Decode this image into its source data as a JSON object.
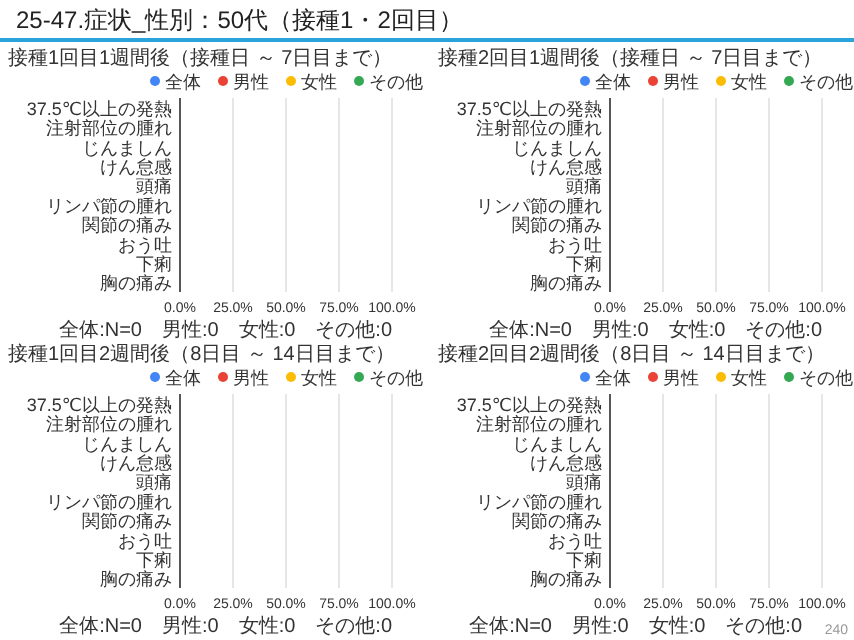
{
  "chart_data": [
    {
      "type": "bar",
      "orientation": "horizontal",
      "title": "接種1回目1週間後（接種日 ～ 7日目まで）",
      "categories": [
        "37.5℃以上の発熱",
        "注射部位の腫れ",
        "じんましん",
        "けん怠感",
        "頭痛",
        "リンパ節の腫れ",
        "関節の痛み",
        "おう吐",
        "下痢",
        "胸の痛み"
      ],
      "series": [
        {
          "name": "全体",
          "color": "#4285f4",
          "values": [
            0,
            0,
            0,
            0,
            0,
            0,
            0,
            0,
            0,
            0
          ]
        },
        {
          "name": "男性",
          "color": "#ea4335",
          "values": [
            0,
            0,
            0,
            0,
            0,
            0,
            0,
            0,
            0,
            0
          ]
        },
        {
          "name": "女性",
          "color": "#fbbc04",
          "values": [
            0,
            0,
            0,
            0,
            0,
            0,
            0,
            0,
            0,
            0
          ]
        },
        {
          "name": "その他",
          "color": "#34a853",
          "values": [
            0,
            0,
            0,
            0,
            0,
            0,
            0,
            0,
            0,
            0
          ]
        }
      ],
      "xlim": [
        0,
        100
      ],
      "xticks": [
        {
          "value": 0,
          "label": "0.0%"
        },
        {
          "value": 25,
          "label": "25.0%"
        },
        {
          "value": 50,
          "label": "50.0%"
        },
        {
          "value": 75,
          "label": "75.0%"
        },
        {
          "value": 100,
          "label": "100.0%"
        }
      ],
      "grid": "x",
      "legend": "top",
      "annotations": [
        "25-47.症状_性別：50代（接種1・2回目）",
        "全体:N=0　男性:0　女性:0　その他:0"
      ]
    },
    {
      "type": "bar",
      "orientation": "horizontal",
      "title": "接種2回目1週間後（接種日 ～ 7日目まで）",
      "categories": [
        "37.5℃以上の発熱",
        "注射部位の腫れ",
        "じんましん",
        "けん怠感",
        "頭痛",
        "リンパ節の腫れ",
        "関節の痛み",
        "おう吐",
        "下痢",
        "胸の痛み"
      ],
      "series": [
        {
          "name": "全体",
          "color": "#4285f4",
          "values": [
            0,
            0,
            0,
            0,
            0,
            0,
            0,
            0,
            0,
            0
          ]
        },
        {
          "name": "男性",
          "color": "#ea4335",
          "values": [
            0,
            0,
            0,
            0,
            0,
            0,
            0,
            0,
            0,
            0
          ]
        },
        {
          "name": "女性",
          "color": "#fbbc04",
          "values": [
            0,
            0,
            0,
            0,
            0,
            0,
            0,
            0,
            0,
            0
          ]
        },
        {
          "name": "その他",
          "color": "#34a853",
          "values": [
            0,
            0,
            0,
            0,
            0,
            0,
            0,
            0,
            0,
            0
          ]
        }
      ],
      "xlim": [
        0,
        100
      ],
      "xticks": [
        {
          "value": 0,
          "label": "0.0%"
        },
        {
          "value": 25,
          "label": "25.0%"
        },
        {
          "value": 50,
          "label": "50.0%"
        },
        {
          "value": 75,
          "label": "75.0%"
        },
        {
          "value": 100,
          "label": "100.0%"
        }
      ],
      "grid": "x",
      "legend": "top",
      "annotations": [
        "全体:N=0　男性:0　女性:0　その他:0"
      ]
    },
    {
      "type": "bar",
      "orientation": "horizontal",
      "title": "接種1回目2週間後（8日目 ～ 14日目まで）",
      "categories": [
        "37.5℃以上の発熱",
        "注射部位の腫れ",
        "じんましん",
        "けん怠感",
        "頭痛",
        "リンパ節の腫れ",
        "関節の痛み",
        "おう吐",
        "下痢",
        "胸の痛み"
      ],
      "series": [
        {
          "name": "全体",
          "color": "#4285f4",
          "values": [
            0,
            0,
            0,
            0,
            0,
            0,
            0,
            0,
            0,
            0
          ]
        },
        {
          "name": "男性",
          "color": "#ea4335",
          "values": [
            0,
            0,
            0,
            0,
            0,
            0,
            0,
            0,
            0,
            0
          ]
        },
        {
          "name": "女性",
          "color": "#fbbc04",
          "values": [
            0,
            0,
            0,
            0,
            0,
            0,
            0,
            0,
            0,
            0
          ]
        },
        {
          "name": "その他",
          "color": "#34a853",
          "values": [
            0,
            0,
            0,
            0,
            0,
            0,
            0,
            0,
            0,
            0
          ]
        }
      ],
      "xlim": [
        0,
        100
      ],
      "xticks": [
        {
          "value": 0,
          "label": "0.0%"
        },
        {
          "value": 25,
          "label": "25.0%"
        },
        {
          "value": 50,
          "label": "50.0%"
        },
        {
          "value": 75,
          "label": "75.0%"
        },
        {
          "value": 100,
          "label": "100.0%"
        }
      ],
      "grid": "x",
      "legend": "top",
      "annotations": [
        "全体:N=0　男性:0　女性:0　その他:0"
      ]
    },
    {
      "type": "bar",
      "orientation": "horizontal",
      "title": "接種2回目2週間後（8日目 ～ 14日目まで）",
      "categories": [
        "37.5℃以上の発熱",
        "注射部位の腫れ",
        "じんましん",
        "けん怠感",
        "頭痛",
        "リンパ節の腫れ",
        "関節の痛み",
        "おう吐",
        "下痢",
        "胸の痛み"
      ],
      "series": [
        {
          "name": "全体",
          "color": "#4285f4",
          "values": [
            0,
            0,
            0,
            0,
            0,
            0,
            0,
            0,
            0,
            0
          ]
        },
        {
          "name": "男性",
          "color": "#ea4335",
          "values": [
            0,
            0,
            0,
            0,
            0,
            0,
            0,
            0,
            0,
            0
          ]
        },
        {
          "name": "女性",
          "color": "#fbbc04",
          "values": [
            0,
            0,
            0,
            0,
            0,
            0,
            0,
            0,
            0,
            0
          ]
        },
        {
          "name": "その他",
          "color": "#34a853",
          "values": [
            0,
            0,
            0,
            0,
            0,
            0,
            0,
            0,
            0,
            0
          ]
        }
      ],
      "xlim": [
        0,
        100
      ],
      "xticks": [
        {
          "value": 0,
          "label": "0.0%"
        },
        {
          "value": 25,
          "label": "25.0%"
        },
        {
          "value": 50,
          "label": "50.0%"
        },
        {
          "value": 75,
          "label": "75.0%"
        },
        {
          "value": 100,
          "label": "100.0%"
        }
      ],
      "grid": "x",
      "legend": "top",
      "annotations": [
        "全体:N=0　男性:0　女性:0　その他:0",
        "240"
      ]
    }
  ]
}
